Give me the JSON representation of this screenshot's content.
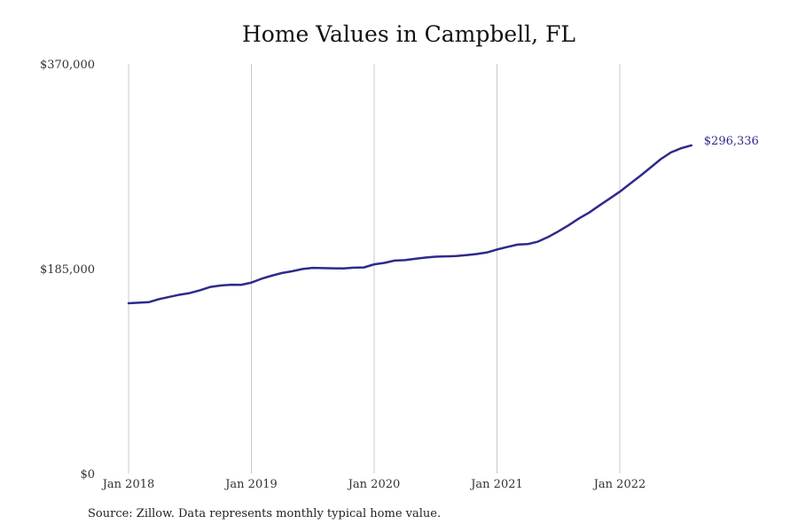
{
  "chart_data": {
    "type": "line",
    "title": "Home Values in Campbell, FL",
    "xlabel": "",
    "ylabel": "",
    "ylim": [
      0,
      370000
    ],
    "y_ticks": [
      "$0",
      "$185,000",
      "$370,000"
    ],
    "x_ticks": [
      {
        "label": "Jan 2018",
        "value": "2018-01"
      },
      {
        "label": "Jan 2019",
        "value": "2019-01"
      },
      {
        "label": "Jan 2020",
        "value": "2020-01"
      },
      {
        "label": "Jan 2021",
        "value": "2021-01"
      },
      {
        "label": "Jan 2022",
        "value": "2022-01"
      }
    ],
    "grid": "vertical",
    "line_color": "#2e2a8a",
    "end_label": "$296,336",
    "series": [
      {
        "x": [
          "2018-01",
          "2018-02",
          "2018-03",
          "2018-04",
          "2018-05",
          "2018-06",
          "2018-07",
          "2018-08",
          "2018-09",
          "2018-10",
          "2018-11",
          "2018-12",
          "2019-01",
          "2019-02",
          "2019-03",
          "2019-04",
          "2019-05",
          "2019-06",
          "2019-07",
          "2019-08",
          "2019-09",
          "2019-10",
          "2019-11",
          "2019-12",
          "2020-01",
          "2020-02",
          "2020-03",
          "2020-04",
          "2020-05",
          "2020-06",
          "2020-07",
          "2020-08",
          "2020-09",
          "2020-10",
          "2020-11",
          "2020-12",
          "2021-01",
          "2021-02",
          "2021-03",
          "2021-04",
          "2021-05",
          "2021-06",
          "2021-07",
          "2021-08",
          "2021-09",
          "2021-10",
          "2021-11",
          "2021-12",
          "2022-01",
          "2022-02",
          "2022-03",
          "2022-04",
          "2022-05",
          "2022-06",
          "2022-07",
          "2022-08"
        ],
        "y": [
          153800,
          154300,
          154800,
          157500,
          159500,
          161500,
          163000,
          165500,
          168500,
          169800,
          170500,
          170400,
          172400,
          175900,
          178700,
          181100,
          182700,
          184700,
          185700,
          185500,
          185300,
          185200,
          185900,
          186100,
          188900,
          190200,
          192300,
          192700,
          193900,
          195000,
          195800,
          196100,
          196400,
          197200,
          198200,
          199600,
          202300,
          204600,
          206700,
          207200,
          209400,
          213600,
          218700,
          224200,
          230300,
          235600,
          242000,
          248200,
          254500,
          261700,
          268800,
          276300,
          283900,
          290000,
          293800,
          296336
        ]
      }
    ]
  },
  "footer": {
    "source": "Source: Zillow. Data represents monthly typical home value."
  }
}
